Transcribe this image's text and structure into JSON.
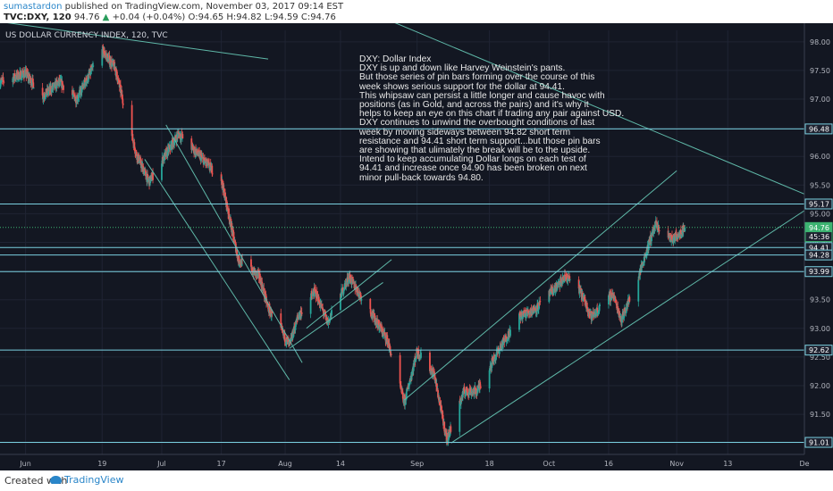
{
  "header": {
    "username": "sumastardon",
    "published": "published on TradingView.com, November 03, 2017 09:14 EST",
    "symbol": "TVC:DXY, 120",
    "last": "94.76",
    "arrow": "▲",
    "change": "+0.04 (+0.04%)",
    "ohlc": "O:94.65 H:94.82 L:94.59 C:94.76"
  },
  "footer": {
    "created_with": "Created with",
    "brand": "TradingView"
  },
  "colors": {
    "background": "#131722",
    "candle_up": "#26a69a",
    "candle_down": "#ef5350",
    "trend": "#5fb8a8",
    "hline": "#7ad0e0",
    "last_price": "#3cb371"
  },
  "chart_data": {
    "type": "candlestick",
    "title": "US DOLLAR CURRENCY INDEX, 120, TVC",
    "ylim": [
      90.8,
      98.2
    ],
    "yticks": [
      "98.00",
      "97.50",
      "97.00",
      "96.50",
      "96.00",
      "95.50",
      "95.00",
      "94.50",
      "94.00",
      "93.50",
      "93.00",
      "92.50",
      "92.00",
      "91.50",
      "91.00"
    ],
    "xlim": [
      "2017-05-26",
      "2017-12-01"
    ],
    "xticks": [
      {
        "label": "Jun",
        "date": "2017-06-01"
      },
      {
        "label": "19",
        "date": "2017-06-19"
      },
      {
        "label": "Jul",
        "date": "2017-07-03"
      },
      {
        "label": "17",
        "date": "2017-07-17"
      },
      {
        "label": "Aug",
        "date": "2017-08-01"
      },
      {
        "label": "14",
        "date": "2017-08-14"
      },
      {
        "label": "Sep",
        "date": "2017-09-01"
      },
      {
        "label": "18",
        "date": "2017-09-18"
      },
      {
        "label": "Oct",
        "date": "2017-10-02"
      },
      {
        "label": "16",
        "date": "2017-10-16"
      },
      {
        "label": "Nov",
        "date": "2017-11-01"
      },
      {
        "label": "13",
        "date": "2017-11-13"
      },
      {
        "label": "De",
        "date": "2017-12-01"
      }
    ],
    "price_path": [
      [
        "2017-05-26",
        97.3
      ],
      [
        "2017-06-01",
        97.45
      ],
      [
        "2017-06-05",
        97.05
      ],
      [
        "2017-06-09",
        97.3
      ],
      [
        "2017-06-13",
        97.0
      ],
      [
        "2017-06-19",
        97.85
      ],
      [
        "2017-06-22",
        97.55
      ],
      [
        "2017-06-27",
        96.05
      ],
      [
        "2017-06-30",
        95.55
      ],
      [
        "2017-07-07",
        96.4
      ],
      [
        "2017-07-12",
        96.0
      ],
      [
        "2017-07-17",
        95.6
      ],
      [
        "2017-07-21",
        94.2
      ],
      [
        "2017-07-26",
        93.9
      ],
      [
        "2017-07-28",
        93.35
      ],
      [
        "2017-08-02",
        92.7
      ],
      [
        "2017-08-04",
        93.2
      ],
      [
        "2017-08-08",
        93.65
      ],
      [
        "2017-08-11",
        93.1
      ],
      [
        "2017-08-16",
        93.9
      ],
      [
        "2017-08-21",
        93.3
      ],
      [
        "2017-08-25",
        92.8
      ],
      [
        "2017-08-29",
        91.7
      ],
      [
        "2017-09-01",
        92.6
      ],
      [
        "2017-09-05",
        92.2
      ],
      [
        "2017-09-08",
        91.05
      ],
      [
        "2017-09-12",
        91.9
      ],
      [
        "2017-09-15",
        91.9
      ],
      [
        "2017-09-20",
        92.6
      ],
      [
        "2017-09-25",
        93.2
      ],
      [
        "2017-09-29",
        93.35
      ],
      [
        "2017-10-06",
        93.9
      ],
      [
        "2017-10-09",
        93.7
      ],
      [
        "2017-10-12",
        93.2
      ],
      [
        "2017-10-17",
        93.6
      ],
      [
        "2017-10-19",
        93.15
      ],
      [
        "2017-10-23",
        93.9
      ],
      [
        "2017-10-26",
        94.6
      ],
      [
        "2017-10-27",
        94.8
      ],
      [
        "2017-10-31",
        94.55
      ],
      [
        "2017-11-03",
        94.76
      ]
    ],
    "horizontal_levels": [
      {
        "price": 96.48,
        "label": "96.48"
      },
      {
        "price": 95.17,
        "label": "95.17"
      },
      {
        "price": 94.41,
        "label": "94.41"
      },
      {
        "price": 94.28,
        "label": "94.28"
      },
      {
        "price": 93.99,
        "label": "93.99"
      },
      {
        "price": 92.62,
        "label": "92.62"
      },
      {
        "price": 91.01,
        "label": "91.01"
      }
    ],
    "price_labels": [
      {
        "price": 94.76,
        "label": "94.76",
        "style": "last"
      },
      {
        "price": 94.6,
        "label": "45:36",
        "style": "countdown"
      }
    ],
    "trend_lines": [
      {
        "from": [
          "2017-05-26",
          98.35
        ],
        "to": [
          "2017-07-28",
          97.7
        ]
      },
      {
        "from": [
          "2017-08-23",
          98.45
        ],
        "to": [
          "2017-12-04",
          95.25
        ]
      },
      {
        "from": [
          "2017-07-04",
          96.55
        ],
        "to": [
          "2017-08-05",
          92.4
        ]
      },
      {
        "from": [
          "2017-06-29",
          95.95
        ],
        "to": [
          "2017-08-02",
          92.1
        ]
      },
      {
        "from": [
          "2017-08-02",
          92.65
        ],
        "to": [
          "2017-08-24",
          93.8
        ]
      },
      {
        "from": [
          "2017-08-06",
          93.0
        ],
        "to": [
          "2017-08-26",
          94.2
        ]
      },
      {
        "from": [
          "2017-08-29",
          91.75
        ],
        "to": [
          "2017-11-01",
          95.75
        ]
      },
      {
        "from": [
          "2017-09-09",
          91.0
        ],
        "to": [
          "2017-12-04",
          95.2
        ]
      }
    ],
    "annotation": {
      "lines": [
        "DXY: Dollar Index",
        "DXY is up and down like Harvey Weinstein's pants.",
        "But those series of pin bars forming over the course of this",
        "week shows serious support for the dollar at 94.41.",
        "This whipsaw can persist a little longer and cause havoc with",
        "positions (as in Gold, and across the pairs) and it's why it",
        "helps to keep an eye on this chart if trading any pair against USD.",
        "DXY continues to unwind the overbought conditions of last",
        "week by moving sideways between 94.82 short term",
        "resistance and 94.41 short term support...but those pin bars",
        "are showing that ulimately the break will be to the upside.",
        "Intend to keep accumulating Dollar longs on each test of",
        "94.41 and increase once 94.90 has been broken on next",
        "minor pull-back towards 94.80."
      ]
    }
  }
}
